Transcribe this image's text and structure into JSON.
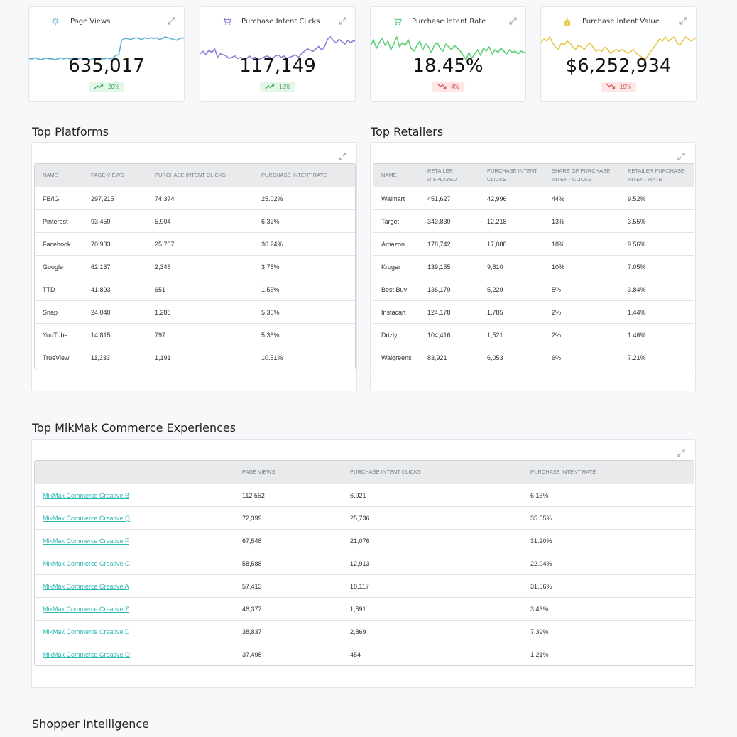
{
  "kpis": [
    {
      "title": "Page Views",
      "value": "635,017",
      "change": "20%",
      "trend": "up",
      "color": "#5bb0d4",
      "icon": "sparkle-icon",
      "series": [
        30,
        30,
        31,
        30,
        29,
        30,
        31,
        30,
        30,
        29,
        30,
        31,
        30,
        31,
        30,
        30,
        29,
        30,
        31,
        30,
        30,
        29,
        30,
        30,
        31,
        30,
        30,
        31,
        30,
        31,
        34,
        35,
        52,
        54,
        54,
        53,
        54,
        55,
        54,
        53,
        55,
        54,
        55,
        54,
        55,
        53,
        54,
        56,
        55,
        54,
        53,
        52,
        54,
        55,
        54
      ]
    },
    {
      "title": "Purchase Intent Clicks",
      "value": "117,149",
      "change": "15%",
      "trend": "up",
      "color": "#8b7fd6",
      "icon": "cart-icon",
      "series": [
        44,
        46,
        43,
        47,
        45,
        48,
        41,
        44,
        43,
        42,
        40,
        41,
        42,
        40,
        41,
        39,
        40,
        42,
        40,
        41,
        39,
        40,
        41,
        42,
        41,
        40,
        42,
        43,
        41,
        42,
        40,
        41,
        42,
        43,
        41,
        44,
        46,
        48,
        47,
        46,
        48,
        50,
        47,
        50,
        56,
        58,
        55,
        53,
        56,
        54,
        52,
        55,
        53,
        55,
        54
      ]
    },
    {
      "title": "Purchase Intent Rate",
      "value": "18.45%",
      "change": "4%",
      "trend": "down",
      "color": "#5fcf77",
      "icon": "cart-icon",
      "series": [
        50,
        54,
        48,
        52,
        55,
        50,
        53,
        47,
        51,
        56,
        49,
        52,
        50,
        54,
        48,
        46,
        50,
        53,
        47,
        51,
        49,
        45,
        50,
        52,
        48,
        46,
        51,
        49,
        47,
        50,
        48,
        46,
        43,
        40,
        45,
        41,
        44,
        47,
        43,
        48,
        46,
        49,
        44,
        47,
        45,
        48,
        46,
        44,
        47,
        45,
        46,
        44,
        46,
        45,
        46
      ]
    },
    {
      "title": "Purchase Intent Value",
      "value": "$6,252,934",
      "change": "19%",
      "trend": "down",
      "color": "#e8c84a",
      "icon": "money-bag-icon",
      "series": [
        50,
        52,
        51,
        53,
        50,
        48,
        47,
        50,
        49,
        51,
        50,
        48,
        47,
        49,
        48,
        47,
        49,
        50,
        48,
        46,
        47,
        46,
        48,
        47,
        45,
        46,
        47,
        46,
        47,
        46,
        45,
        46,
        47,
        45,
        44,
        43,
        42,
        44,
        46,
        48,
        50,
        52,
        51,
        53,
        51,
        52,
        53,
        50,
        49,
        51,
        53,
        52,
        51,
        52,
        53
      ]
    }
  ],
  "platforms": {
    "title": "Top Platforms",
    "columns": [
      "NAME",
      "PAGE VIEWS",
      "PURCHASE INTENT CLICKS",
      "PURCHASE INTENT RATE"
    ],
    "rows": [
      [
        "FB/IG",
        "297,215",
        "74,374",
        "25.02%"
      ],
      [
        "Pinterest",
        "93,459",
        "5,904",
        "6.32%"
      ],
      [
        "Facebook",
        "70,933",
        "25,707",
        "36.24%"
      ],
      [
        "Google",
        "62,137",
        "2,348",
        "3.78%"
      ],
      [
        "TTD",
        "41,893",
        "651",
        "1.55%"
      ],
      [
        "Snap",
        "24,040",
        "1,288",
        "5.36%"
      ],
      [
        "YouTube",
        "14,815",
        "797",
        "5.38%"
      ],
      [
        "TrueView",
        "11,333",
        "1,191",
        "10.51%"
      ]
    ]
  },
  "retailers": {
    "title": "Top Retailers",
    "columns": [
      "NAME",
      "RETAILER DISPLAYED",
      "PURCHASE INTENT CLICKS",
      "SHARE OF PURCHASE INTENT CLICKS",
      "RETAILER PURCHASE INTENT RATE"
    ],
    "rows": [
      [
        "Walmart",
        "451,627",
        "42,996",
        "44%",
        "9.52%"
      ],
      [
        "Target",
        "343,830",
        "12,218",
        "13%",
        "3.55%"
      ],
      [
        "Amazon",
        "178,742",
        "17,088",
        "18%",
        "9.56%"
      ],
      [
        "Kroger",
        "139,155",
        "9,810",
        "10%",
        "7.05%"
      ],
      [
        "Best Buy",
        "136,179",
        "5,229",
        "5%",
        "3.84%"
      ],
      [
        "Instacart",
        "124,178",
        "1,785",
        "2%",
        "1.44%"
      ],
      [
        "Drizly",
        "104,416",
        "1,521",
        "2%",
        "1.46%"
      ],
      [
        "Walgreens",
        "83,921",
        "6,053",
        "6%",
        "7.21%"
      ]
    ]
  },
  "experiences": {
    "title": "Top MikMak Commerce Experiences",
    "columns": [
      "",
      "PAGE VIEWS",
      "PURCHASE INTENT CLICKS",
      "PURCHASE INTENT RATE"
    ],
    "rows": [
      [
        "MikMak Commerce Creative B",
        "112,552",
        "6,921",
        "6.15%"
      ],
      [
        "MikMak Commerce Creative Q",
        "72,399",
        "25,736",
        "35.55%"
      ],
      [
        "MikMak Commerce Creative F",
        "67,548",
        "21,076",
        "31.20%"
      ],
      [
        "MikMak Commerce Creative G",
        "58,588",
        "12,913",
        "22.04%"
      ],
      [
        "MikMak Commerce Creative A",
        "57,413",
        "18,117",
        "31.56%"
      ],
      [
        "MikMak Commerce Creative Z",
        "46,377",
        "1,591",
        "3.43%"
      ],
      [
        "MikMak Commerce Creative D",
        "38,837",
        "2,869",
        "7.39%"
      ],
      [
        "MikMak Commerce Creative O",
        "37,498",
        "454",
        "1.21%"
      ]
    ]
  },
  "shopper": {
    "title": "Shopper Intelligence"
  }
}
